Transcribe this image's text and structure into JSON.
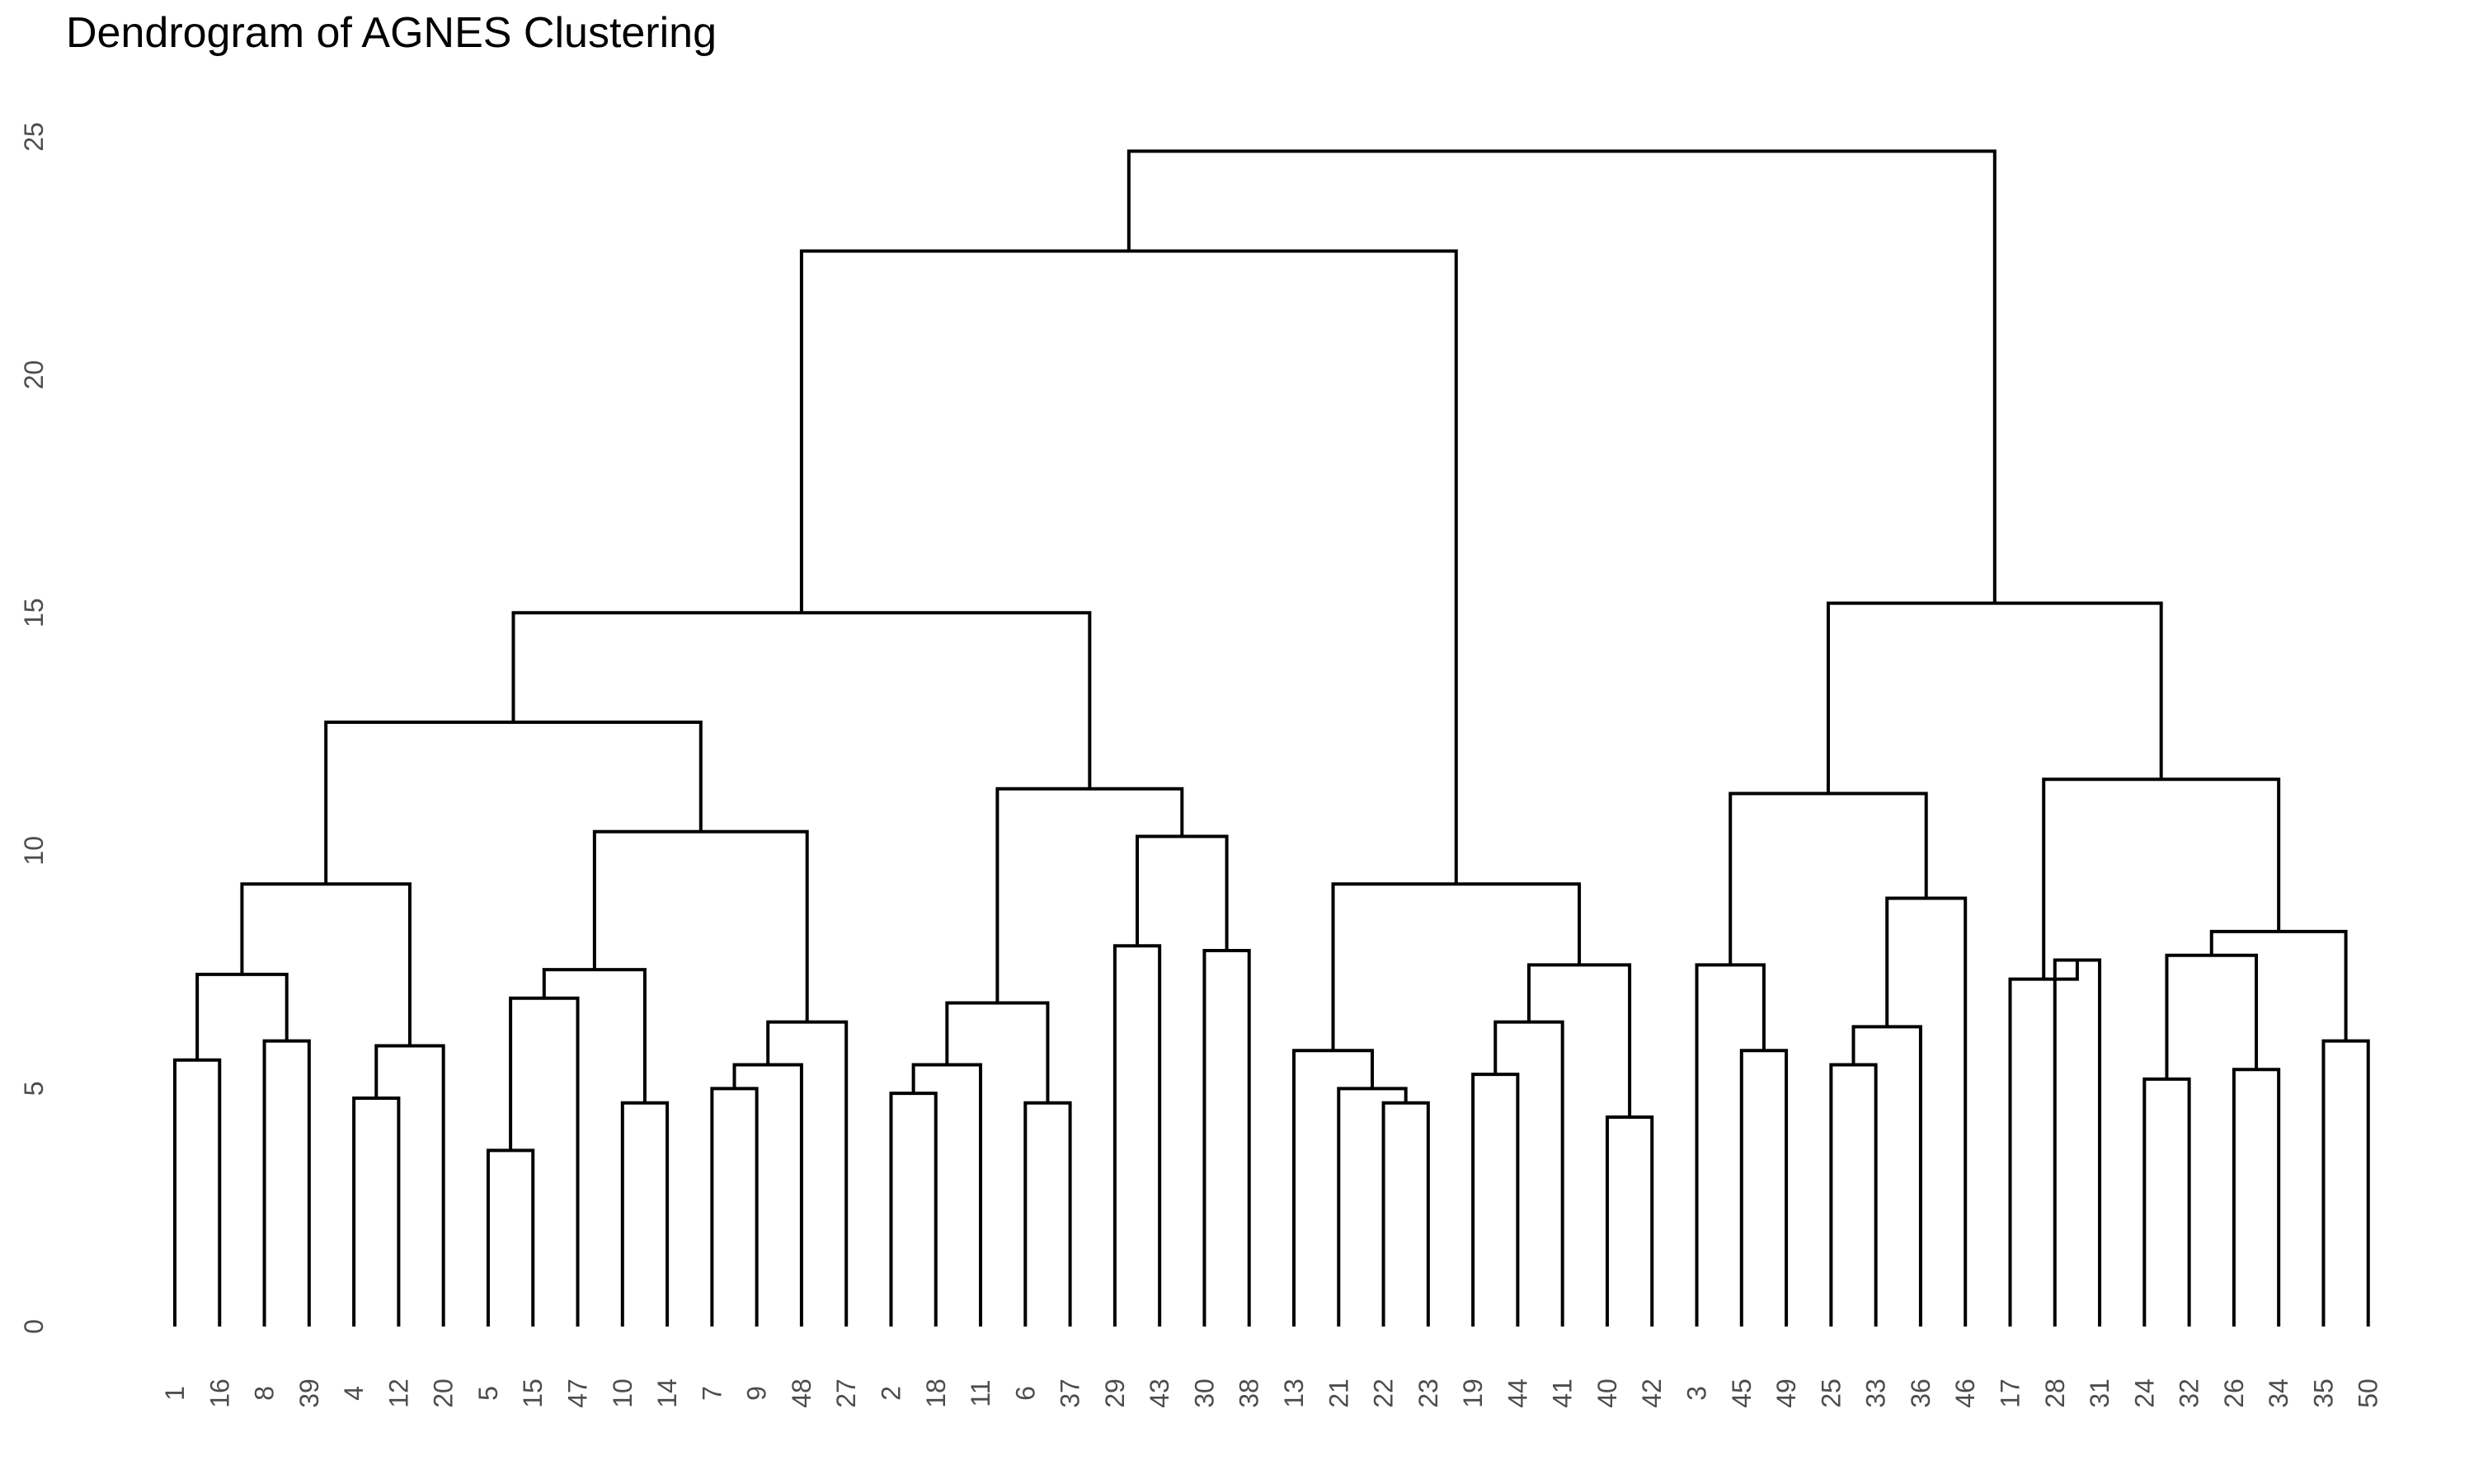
{
  "chart_data": {
    "type": "dendrogram",
    "title": "Dendrogram of AGNES Clustering",
    "xlabel": "",
    "ylabel": "",
    "ylim": [
      0,
      25
    ],
    "y_ticks": [
      "0",
      "5",
      "10",
      "15",
      "20",
      "25"
    ],
    "grid": false,
    "leaf_order": [
      "1",
      "16",
      "8",
      "39",
      "4",
      "12",
      "20",
      "5",
      "15",
      "47",
      "10",
      "14",
      "7",
      "9",
      "48",
      "27",
      "2",
      "18",
      "11",
      "6",
      "37",
      "29",
      "43",
      "30",
      "38",
      "13",
      "21",
      "22",
      "23",
      "19",
      "44",
      "41",
      "40",
      "42",
      "3",
      "45",
      "49",
      "25",
      "33",
      "36",
      "46",
      "17",
      "28",
      "31",
      "24",
      "32",
      "26",
      "34",
      "35",
      "50"
    ],
    "merges": [
      {
        "id": "a1",
        "children": [
          "1",
          "16"
        ],
        "height": 5.6
      },
      {
        "id": "a2",
        "children": [
          "8",
          "39"
        ],
        "height": 6.0
      },
      {
        "id": "a3",
        "children": [
          "a1",
          "a2"
        ],
        "height": 7.4
      },
      {
        "id": "a4",
        "children": [
          "4",
          "12"
        ],
        "height": 4.8
      },
      {
        "id": "a5",
        "children": [
          "a4",
          "20"
        ],
        "height": 5.9
      },
      {
        "id": "a6",
        "children": [
          "a3",
          "a5"
        ],
        "height": 9.3
      },
      {
        "id": "b1",
        "children": [
          "5",
          "15"
        ],
        "height": 3.7
      },
      {
        "id": "b2",
        "children": [
          "b1",
          "47"
        ],
        "height": 6.9
      },
      {
        "id": "b3",
        "children": [
          "10",
          "14"
        ],
        "height": 4.7
      },
      {
        "id": "b4",
        "children": [
          "b2",
          "b3"
        ],
        "height": 7.5
      },
      {
        "id": "b5",
        "children": [
          "7",
          "9"
        ],
        "height": 5.0
      },
      {
        "id": "b6",
        "children": [
          "b5",
          "48"
        ],
        "height": 5.5
      },
      {
        "id": "b7",
        "children": [
          "b6",
          "27"
        ],
        "height": 6.4
      },
      {
        "id": "b8",
        "children": [
          "b4",
          "b7"
        ],
        "height": 10.4
      },
      {
        "id": "c1",
        "children": [
          "a6",
          "b8"
        ],
        "height": 12.7
      },
      {
        "id": "d1",
        "children": [
          "2",
          "18"
        ],
        "height": 4.9
      },
      {
        "id": "d2",
        "children": [
          "d1",
          "11"
        ],
        "height": 5.5
      },
      {
        "id": "d3",
        "children": [
          "6",
          "37"
        ],
        "height": 4.7
      },
      {
        "id": "d4",
        "children": [
          "d2",
          "d3"
        ],
        "height": 6.8
      },
      {
        "id": "d5",
        "children": [
          "29",
          "43"
        ],
        "height": 8.0
      },
      {
        "id": "d6",
        "children": [
          "30",
          "38"
        ],
        "height": 7.9
      },
      {
        "id": "d7",
        "children": [
          "d5",
          "d6"
        ],
        "height": 10.3
      },
      {
        "id": "d8",
        "children": [
          "d4",
          "d7"
        ],
        "height": 11.3
      },
      {
        "id": "c2",
        "children": [
          "c1",
          "d8"
        ],
        "height": 15.0
      },
      {
        "id": "e1",
        "children": [
          "22",
          "23"
        ],
        "height": 4.7
      },
      {
        "id": "e2",
        "children": [
          "21",
          "e1"
        ],
        "height": 5.0
      },
      {
        "id": "e3",
        "children": [
          "13",
          "e2"
        ],
        "height": 5.8
      },
      {
        "id": "e4",
        "children": [
          "19",
          "44"
        ],
        "height": 5.3
      },
      {
        "id": "e5",
        "children": [
          "e4",
          "41"
        ],
        "height": 6.4
      },
      {
        "id": "e6",
        "children": [
          "40",
          "42"
        ],
        "height": 4.4
      },
      {
        "id": "e7",
        "children": [
          "e5",
          "e6"
        ],
        "height": 7.6
      },
      {
        "id": "e8",
        "children": [
          "e3",
          "e7"
        ],
        "height": 9.3
      },
      {
        "id": "c3",
        "children": [
          "c2",
          "e8"
        ],
        "height": 22.6
      },
      {
        "id": "f1",
        "children": [
          "45",
          "49"
        ],
        "height": 5.8
      },
      {
        "id": "f2",
        "children": [
          "3",
          "f1"
        ],
        "height": 7.6
      },
      {
        "id": "f3",
        "children": [
          "25",
          "33"
        ],
        "height": 5.5
      },
      {
        "id": "f4",
        "children": [
          "f3",
          "36"
        ],
        "height": 6.3
      },
      {
        "id": "f5",
        "children": [
          "f4",
          "46"
        ],
        "height": 9.0
      },
      {
        "id": "f6",
        "children": [
          "f2",
          "f5"
        ],
        "height": 11.2
      },
      {
        "id": "g1",
        "children": [
          "28",
          "31"
        ],
        "height": 7.7
      },
      {
        "id": "g2",
        "children": [
          "17",
          "g1"
        ],
        "height": 7.3
      },
      {
        "id": "g3",
        "children": [
          "24",
          "32"
        ],
        "height": 5.2
      },
      {
        "id": "g4",
        "children": [
          "26",
          "34"
        ],
        "height": 5.4
      },
      {
        "id": "g5",
        "children": [
          "g3",
          "g4"
        ],
        "height": 7.8
      },
      {
        "id": "g6",
        "children": [
          "35",
          "50"
        ],
        "height": 6.0
      },
      {
        "id": "g7",
        "children": [
          "g5",
          "g6"
        ],
        "height": 8.3
      },
      {
        "id": "g8",
        "children": [
          "g2",
          "g7"
        ],
        "height": 11.5
      },
      {
        "id": "f7",
        "children": [
          "f6",
          "g8"
        ],
        "height": 15.2
      },
      {
        "id": "root",
        "children": [
          "c3",
          "f7"
        ],
        "height": 24.7
      }
    ]
  }
}
